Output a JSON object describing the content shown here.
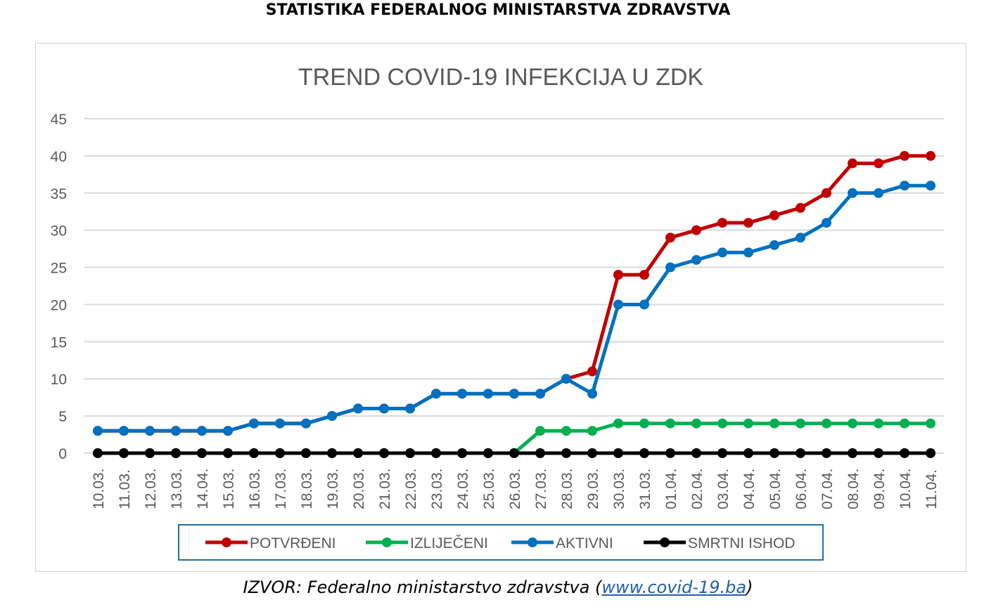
{
  "heading": "STATISTIKA FEDERALNOG MINISTARSTVA ZDRAVSTVA",
  "source": {
    "prefix": "IZVOR: Federalno ministarstvo zdravstva (",
    "link": "www.covid-19.ba",
    "suffix": ")"
  },
  "chart_data": {
    "type": "line",
    "title": "TREND COVID-19 INFEKCIJA U ZDK",
    "xlabel": "",
    "ylabel": "",
    "ylim": [
      0,
      45
    ],
    "yticks": [
      0,
      5,
      10,
      15,
      20,
      25,
      30,
      35,
      40,
      45
    ],
    "grid": true,
    "legend_position": "bottom",
    "categories": [
      "10.03.",
      "11.03.",
      "12.03.",
      "13.03.",
      "14.04.",
      "15.03.",
      "16.03.",
      "17.03.",
      "18.03.",
      "19.03.",
      "20.03.",
      "21.03.",
      "22.03.",
      "23.03.",
      "24.03.",
      "25.03.",
      "26.03.",
      "27.03.",
      "28.03.",
      "29.03.",
      "30.03.",
      "31.03.",
      "01.04.",
      "02.04.",
      "03.04.",
      "04.04.",
      "05.04.",
      "06.04.",
      "07.04.",
      "08.04.",
      "09.04.",
      "10.04.",
      "11.04."
    ],
    "series": [
      {
        "name": "POTVRĐENI",
        "color": "#c00000",
        "values": [
          3,
          3,
          3,
          3,
          3,
          3,
          4,
          4,
          4,
          5,
          6,
          6,
          6,
          8,
          8,
          8,
          8,
          8,
          10,
          11,
          24,
          24,
          29,
          30,
          31,
          31,
          32,
          33,
          35,
          39,
          39,
          40,
          40
        ]
      },
      {
        "name": "IZLIJEČENI",
        "color": "#00b050",
        "values": [
          0,
          0,
          0,
          0,
          0,
          0,
          0,
          0,
          0,
          0,
          0,
          0,
          0,
          0,
          0,
          0,
          0,
          3,
          3,
          3,
          4,
          4,
          4,
          4,
          4,
          4,
          4,
          4,
          4,
          4,
          4,
          4,
          4
        ]
      },
      {
        "name": "AKTIVNI",
        "color": "#0070c0",
        "values": [
          3,
          3,
          3,
          3,
          3,
          3,
          4,
          4,
          4,
          5,
          6,
          6,
          6,
          8,
          8,
          8,
          8,
          8,
          10,
          8,
          20,
          20,
          25,
          26,
          27,
          27,
          28,
          29,
          31,
          35,
          35,
          36,
          36
        ]
      },
      {
        "name": "SMRTNI ISHOD",
        "color": "#000000",
        "values": [
          0,
          0,
          0,
          0,
          0,
          0,
          0,
          0,
          0,
          0,
          0,
          0,
          0,
          0,
          0,
          0,
          0,
          0,
          0,
          0,
          0,
          0,
          0,
          0,
          0,
          0,
          0,
          0,
          0,
          0,
          0,
          0,
          0
        ]
      }
    ]
  }
}
